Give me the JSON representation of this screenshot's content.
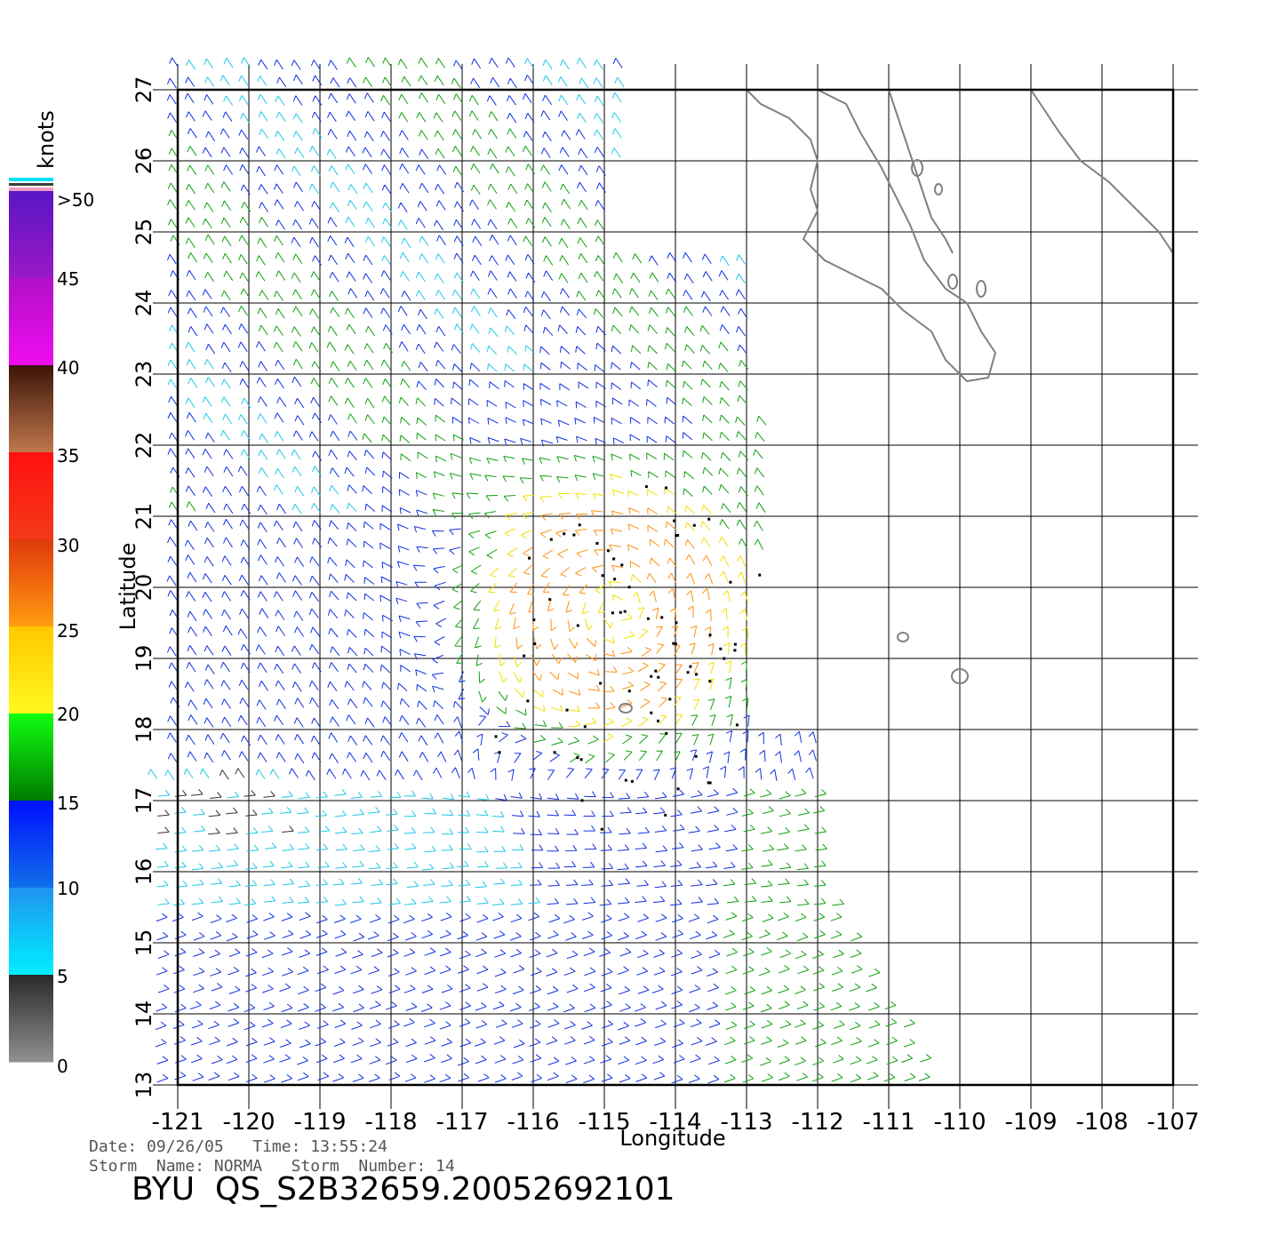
{
  "map": {
    "lon_ticks": [
      "-121",
      "-120",
      "-119",
      "-118",
      "-117",
      "-116",
      "-115",
      "-114",
      "-113",
      "-112",
      "-111",
      "-110",
      "-109",
      "-108",
      "-107"
    ],
    "lat_ticks": [
      "13",
      "14",
      "15",
      "16",
      "17",
      "18",
      "19",
      "20",
      "21",
      "22",
      "23",
      "24",
      "25",
      "26",
      "27"
    ],
    "lon_range": [
      -121,
      -107
    ],
    "lat_range": [
      13,
      27
    ],
    "xlabel": "Longitude",
    "ylabel": "Latitude",
    "coastline_color": "#808080",
    "grid": true
  },
  "colorbar": {
    "title": "knots",
    "labels": [
      ">50",
      "45",
      "40",
      "35",
      "30",
      "25",
      "20",
      "15",
      "10",
      "5",
      "0"
    ],
    "stops": [
      {
        "from": 45,
        "to": 50,
        "top": "#5a16c4",
        "bottom": "#9a18c6"
      },
      {
        "from": 40,
        "to": 45,
        "top": "#b010c8",
        "bottom": "#f00cf0"
      },
      {
        "from": 35,
        "to": 40,
        "top": "#3c1408",
        "bottom": "#c0784c"
      },
      {
        "from": 30,
        "to": 35,
        "top": "#ff1010",
        "bottom": "#f43a18"
      },
      {
        "from": 25,
        "to": 30,
        "top": "#e0380c",
        "bottom": "#ff9c10"
      },
      {
        "from": 20,
        "to": 25,
        "top": "#ffc800",
        "bottom": "#fff820"
      },
      {
        "from": 15,
        "to": 20,
        "top": "#10ff10",
        "bottom": "#007a00"
      },
      {
        "from": 10,
        "to": 15,
        "top": "#0010ff",
        "bottom": "#1070e8"
      },
      {
        "from": 5,
        "to": 10,
        "top": "#2094f0",
        "bottom": "#00f0ff"
      },
      {
        "from": 0,
        "to": 5,
        "top": "#2a2a2a",
        "bottom": "#909090"
      }
    ]
  },
  "info": {
    "line1": "Date: 09/26/05   Time: 13:55:24",
    "line2": "Storm  Name: NORMA   Storm  Number: 14",
    "title": "BYU  QS_S2B32659.20052692101"
  },
  "storm": {
    "name": "NORMA",
    "center_lon": -114.8,
    "center_lat": 19.7
  }
}
